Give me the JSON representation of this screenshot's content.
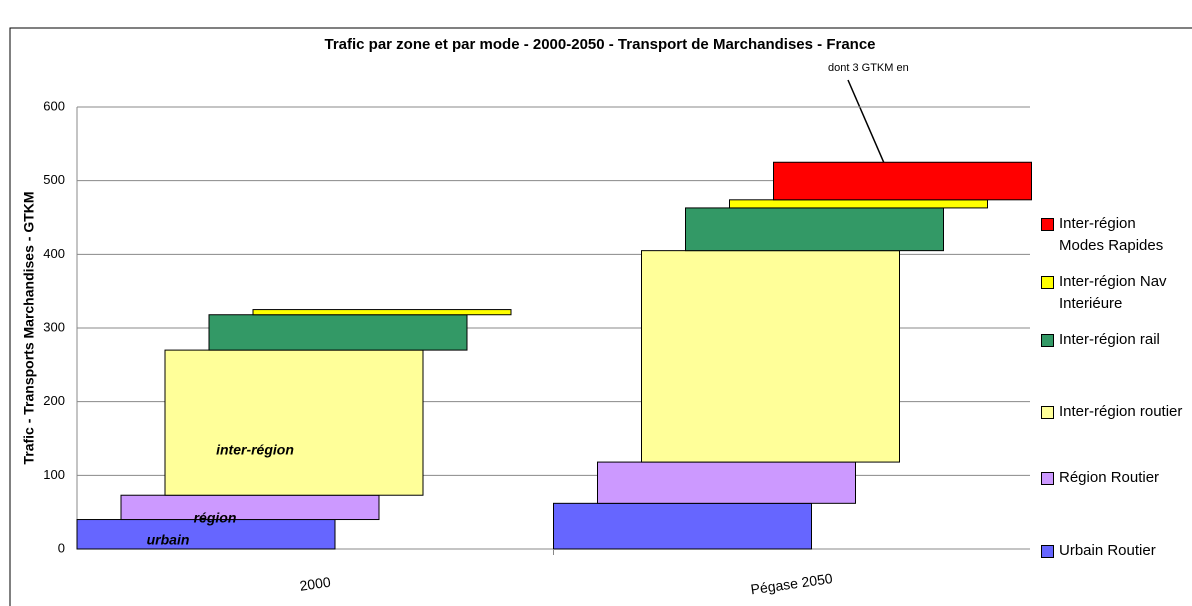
{
  "chart_data": {
    "type": "offset_stacked_bar",
    "title": "Trafic par zone et par mode - 2000-2050 - Transport de Marchandises - France",
    "y_label": "Trafic - Transports Marchandises - GTKM",
    "categories": [
      "2000",
      "Pégase 2050"
    ],
    "series": [
      {
        "name": "Urbain Routier",
        "color": "#6666ff",
        "values": [
          40,
          62
        ]
      },
      {
        "name": "Région Routier",
        "color": "#cc99ff",
        "values": [
          33,
          56
        ]
      },
      {
        "name": "Inter-région routier",
        "color": "#ffff99",
        "values": [
          197,
          287
        ]
      },
      {
        "name": "Inter-région rail",
        "color": "#339966",
        "values": [
          48,
          58
        ]
      },
      {
        "name": "Inter-région Nav Interiéure",
        "color": "#ffff00",
        "values": [
          7,
          11
        ]
      },
      {
        "name": "Inter-région Modes Rapides",
        "color": "#ff0000",
        "values": [
          0,
          51
        ]
      }
    ],
    "annotations": [
      "dont 3 GTKM en",
      "inter-région",
      "région",
      "urbain"
    ],
    "ylim": [
      0,
      600
    ],
    "yticks": [
      0,
      100,
      200,
      300,
      400,
      500,
      600
    ],
    "grid": true,
    "legend": "right"
  }
}
